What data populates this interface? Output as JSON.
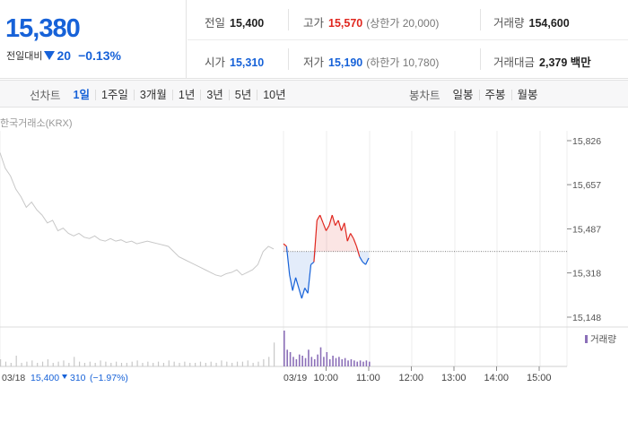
{
  "summary": {
    "current_price": "15,380",
    "change_label": "전일대비",
    "change_value": "20",
    "change_pct": "−0.13%",
    "colors": {
      "up": "#e0271f",
      "down": "#1762d8"
    },
    "stats": {
      "prev_close": {
        "label": "전일",
        "value": "15,400"
      },
      "high": {
        "label": "고가",
        "value": "15,570",
        "sub": "(상한가 20,000)"
      },
      "volume": {
        "label": "거래량",
        "value": "154,600"
      },
      "open": {
        "label": "시가",
        "value": "15,310"
      },
      "low": {
        "label": "저가",
        "value": "15,190",
        "sub": "(하한가 10,780)"
      },
      "trade_amount": {
        "label": "거래대금",
        "value": "2,379 백만"
      }
    }
  },
  "period_bar": {
    "line_label": "선차트",
    "line_periods": [
      "1일",
      "1주일",
      "3개월",
      "1년",
      "3년",
      "5년",
      "10년"
    ],
    "active_period": "1일",
    "candle_label": "봉차트",
    "candle_periods": [
      "일봉",
      "주봉",
      "월봉"
    ]
  },
  "chart_data": {
    "type": "line",
    "source_label": "한국거래소(KRX)",
    "volume_legend": "거래량",
    "prev_day_label": "03/18",
    "prev_day_close": "15,400",
    "prev_day_change": "310",
    "prev_day_change_pct": "(−1.97%)",
    "today_label": "03/19",
    "ylim": [
      15148,
      15826
    ],
    "yticks": [
      "15,826",
      "15,657",
      "15,487",
      "15,318",
      "15,148"
    ],
    "ytick_values": [
      15826,
      15657,
      15487,
      15318,
      15148
    ],
    "xticks": [
      "10:00",
      "11:00",
      "12:00",
      "13:00",
      "14:00",
      "15:00"
    ],
    "reference_price": 15400,
    "prev_day_series": [
      15780,
      15720,
      15690,
      15640,
      15610,
      15570,
      15590,
      15560,
      15540,
      15510,
      15520,
      15480,
      15490,
      15470,
      15460,
      15470,
      15455,
      15450,
      15460,
      15445,
      15440,
      15450,
      15440,
      15445,
      15435,
      15440,
      15430,
      15435,
      15440,
      15435,
      15430,
      15425,
      15420,
      15400,
      15380,
      15370,
      15360,
      15350,
      15340,
      15330,
      15320,
      15310,
      15305,
      15315,
      15320,
      15330,
      15310,
      15320,
      15330,
      15350,
      15400,
      15420,
      15410
    ],
    "today_series": [
      15430,
      15420,
      15310,
      15250,
      15300,
      15260,
      15220,
      15260,
      15240,
      15350,
      15360,
      15520,
      15540,
      15510,
      15480,
      15500,
      15540,
      15500,
      15520,
      15480,
      15510,
      15440,
      15470,
      15450,
      15420,
      15380,
      15360,
      15350,
      15375
    ],
    "prev_day_volume": [
      6,
      4,
      3,
      9,
      3,
      4,
      5,
      3,
      4,
      6,
      3,
      4,
      5,
      3,
      8,
      4,
      3,
      4,
      3,
      5,
      4,
      3,
      4,
      3,
      3,
      4,
      5,
      3,
      4,
      3,
      4,
      3,
      5,
      4,
      3,
      4,
      3,
      3,
      4,
      3,
      4,
      3,
      5,
      4,
      3,
      4,
      4,
      5,
      3,
      4,
      6,
      8,
      20
    ],
    "today_volume": [
      30,
      14,
      12,
      8,
      6,
      10,
      9,
      7,
      14,
      8,
      6,
      10,
      16,
      8,
      12,
      6,
      9,
      7,
      8,
      6,
      7,
      5,
      6,
      5,
      4,
      5,
      4,
      5,
      4
    ]
  }
}
